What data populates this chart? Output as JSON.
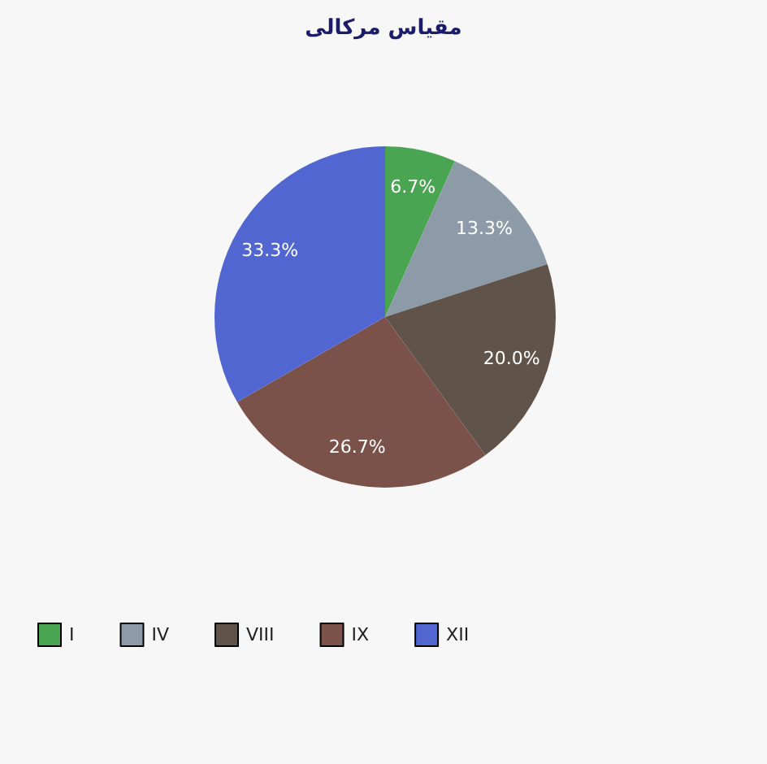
{
  "chart_data": {
    "type": "pie",
    "title": "مقیاس مرکالی",
    "categories": [
      "I",
      "IV",
      "VIII",
      "IX",
      "XII"
    ],
    "values": [
      6.7,
      13.3,
      20.0,
      26.7,
      33.3
    ],
    "value_labels": [
      "6.7%",
      "13.3%",
      "20.0%",
      "26.7%",
      "33.3%"
    ],
    "colors": [
      "#4aa552",
      "#8d9aa8",
      "#605349",
      "#7b5249",
      "#5266d2"
    ],
    "legend": "bottom left"
  }
}
